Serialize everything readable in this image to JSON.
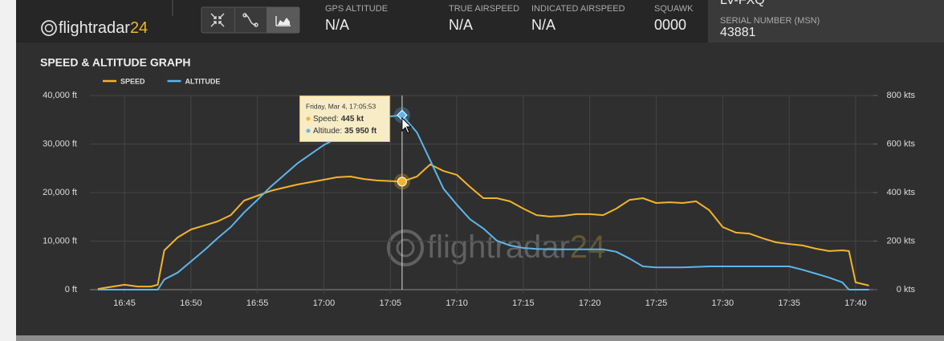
{
  "header": {
    "logo_text": "flightradar",
    "logo_number": "24",
    "fields": [
      {
        "label": "GPS ALTITUDE",
        "value": "N/A"
      },
      {
        "label": "TRUE AIRSPEED",
        "value": "N/A"
      },
      {
        "label": "INDICATED AIRSPEED",
        "value": "N/A"
      },
      {
        "label": "SQUAWK",
        "value": "0000"
      }
    ],
    "registration": "LV-FXQ",
    "serial_label": "SERIAL NUMBER (MSN)",
    "serial_value": "43881"
  },
  "chart_data": {
    "type": "line",
    "title": "SPEED & ALTITUDE GRAPH",
    "x": [
      "16:43",
      "16:45",
      "16:46",
      "16:47",
      "16:47:30",
      "16:48",
      "16:49",
      "16:50",
      "16:51",
      "16:52",
      "16:53",
      "16:54",
      "16:55",
      "16:56",
      "16:57",
      "16:58",
      "16:59",
      "17:00",
      "17:01",
      "17:02",
      "17:03",
      "17:04",
      "17:05:53",
      "17:07",
      "17:08",
      "17:09",
      "17:10",
      "17:11",
      "17:12",
      "17:13",
      "17:14",
      "17:15",
      "17:16",
      "17:17",
      "17:18",
      "17:19",
      "17:20",
      "17:21",
      "17:22",
      "17:23",
      "17:24",
      "17:25",
      "17:26",
      "17:27",
      "17:28",
      "17:29",
      "17:30",
      "17:31",
      "17:32",
      "17:33",
      "17:34",
      "17:35",
      "17:36",
      "17:37",
      "17:38",
      "17:39",
      "17:39:30",
      "17:40",
      "17:41"
    ],
    "xlim": [
      "16:42:24",
      "17:41:20"
    ],
    "xticks": [
      "16:45",
      "16:50",
      "16:55",
      "17:00",
      "17:05",
      "17:10",
      "17:15",
      "17:20",
      "17:25",
      "17:30",
      "17:35",
      "17:40"
    ],
    "ylim": [
      0,
      40000
    ],
    "yticks": [
      {
        "value": 0,
        "label": "0 ft"
      },
      {
        "value": 10000,
        "label": "10,000 ft"
      },
      {
        "value": 20000,
        "label": "20,000 ft"
      },
      {
        "value": 30000,
        "label": "30,000 ft"
      },
      {
        "value": 40000,
        "label": "40,000 ft"
      }
    ],
    "y2lim": [
      0,
      800
    ],
    "y2ticks": [
      {
        "value": 0,
        "label": "0 kts"
      },
      {
        "value": 200,
        "label": "200 kts"
      },
      {
        "value": 400,
        "label": "400 kts"
      },
      {
        "value": 600,
        "label": "600 kts"
      },
      {
        "value": 800,
        "label": "800 kts"
      }
    ],
    "grid": true,
    "series": [
      {
        "name": "SPEED",
        "color": "#f2b42a",
        "axis": "y2",
        "values": [
          3,
          20,
          13,
          13,
          20,
          162,
          215,
          248,
          264,
          281,
          307,
          367,
          387,
          407,
          420,
          433,
          443,
          453,
          463,
          466,
          456,
          450,
          445,
          466,
          516,
          489,
          473,
          423,
          377,
          377,
          364,
          334,
          307,
          301,
          304,
          311,
          311,
          307,
          334,
          370,
          377,
          357,
          360,
          357,
          364,
          327,
          258,
          235,
          231,
          212,
          195,
          188,
          182,
          169,
          159,
          162,
          159,
          30,
          17
        ]
      },
      {
        "name": "ALTITUDE",
        "color": "#5cb6ea",
        "values": [
          0,
          0,
          0,
          0,
          0,
          2100,
          3500,
          5800,
          8100,
          10600,
          12900,
          15900,
          18500,
          21200,
          23600,
          26000,
          27900,
          29800,
          31200,
          32700,
          34200,
          35400,
          35950,
          32400,
          26600,
          20800,
          17500,
          14500,
          12600,
          10100,
          9100,
          8600,
          8400,
          8300,
          8300,
          8300,
          8300,
          8300,
          7800,
          6400,
          4800,
          4600,
          4600,
          4600,
          4700,
          4800,
          4800,
          4800,
          4800,
          4800,
          4800,
          4800,
          4100,
          3300,
          2500,
          1500,
          0,
          0,
          0
        ]
      }
    ],
    "tooltip": {
      "index": 22,
      "date": "Friday, Mar 4, 17:05:53",
      "speed_label": "Speed:",
      "speed_value": "445 kt",
      "altitude_label": "Altitude:",
      "altitude_value": "35 950 ft"
    },
    "watermark": {
      "text": "flightradar",
      "number": "24"
    }
  }
}
